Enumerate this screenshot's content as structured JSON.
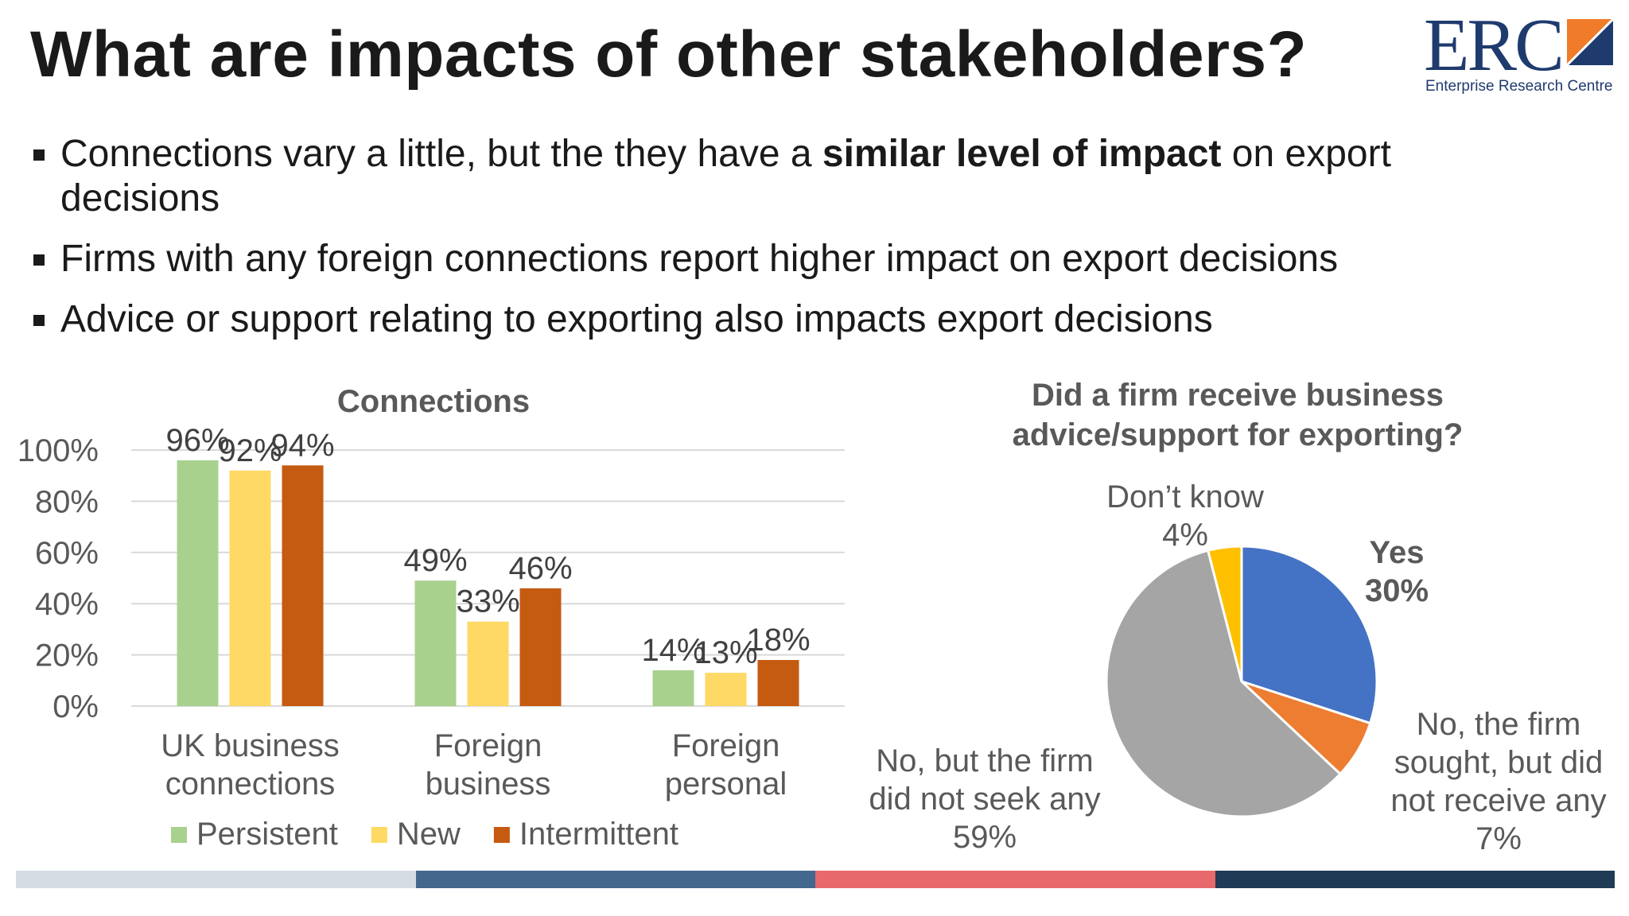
{
  "slide": {
    "title": "What are impacts of other stakeholders?",
    "logo": {
      "text": "ERC",
      "subtitle": "Enterprise Research Centre"
    },
    "bullets": [
      {
        "pre": "Connections vary a little, but the they have a ",
        "bold": "similar level of impact",
        "post": " on export decisions"
      },
      {
        "pre": "Firms with any foreign connections report higher impact on export decisions",
        "bold": "",
        "post": ""
      },
      {
        "pre": "Advice or support relating to exporting also impacts export decisions",
        "bold": "",
        "post": ""
      }
    ]
  },
  "colors": {
    "persistent": "#a9d18e",
    "new": "#ffd966",
    "intermittent": "#c55a11",
    "yes": "#4472c4",
    "sought": "#ed7d31",
    "not_seek": "#a5a5a5",
    "dont_know": "#ffc000",
    "footer": [
      "#d6dce4",
      "#44678e",
      "#e8696b",
      "#1f3b55"
    ]
  },
  "chart_data": [
    {
      "type": "bar",
      "title": "Connections",
      "categories": [
        [
          "UK business",
          "connections"
        ],
        [
          "Foreign",
          "business"
        ],
        [
          "Foreign",
          "personal"
        ]
      ],
      "series": [
        {
          "name": "Persistent",
          "values": [
            96,
            49,
            14
          ]
        },
        {
          "name": "New",
          "values": [
            92,
            33,
            13
          ]
        },
        {
          "name": "Intermittent",
          "values": [
            94,
            46,
            18
          ]
        }
      ],
      "value_labels": [
        [
          "96%",
          "49%",
          "14%"
        ],
        [
          "92%",
          "33%",
          "13%"
        ],
        [
          "94%",
          "46%",
          "18%"
        ]
      ],
      "yticks": [
        "0%",
        "20%",
        "40%",
        "60%",
        "80%",
        "100%"
      ],
      "ylim": [
        0,
        100
      ],
      "legend": "bottom",
      "grid": true
    },
    {
      "type": "pie",
      "title": [
        "Did a firm receive business",
        "advice/support for exporting?"
      ],
      "slices": [
        {
          "label": [
            "Yes"
          ],
          "value_label": "30%",
          "value": 30,
          "bold": true
        },
        {
          "label": [
            "No, the firm",
            "sought, but did",
            "not receive any"
          ],
          "value_label": "7%",
          "value": 7,
          "bold": false
        },
        {
          "label": [
            "No, but the firm",
            "did not seek any"
          ],
          "value_label": "59%",
          "value": 59,
          "bold": false
        },
        {
          "label": [
            "Don’t know"
          ],
          "value_label": "4%",
          "value": 4,
          "bold": false
        }
      ]
    }
  ]
}
